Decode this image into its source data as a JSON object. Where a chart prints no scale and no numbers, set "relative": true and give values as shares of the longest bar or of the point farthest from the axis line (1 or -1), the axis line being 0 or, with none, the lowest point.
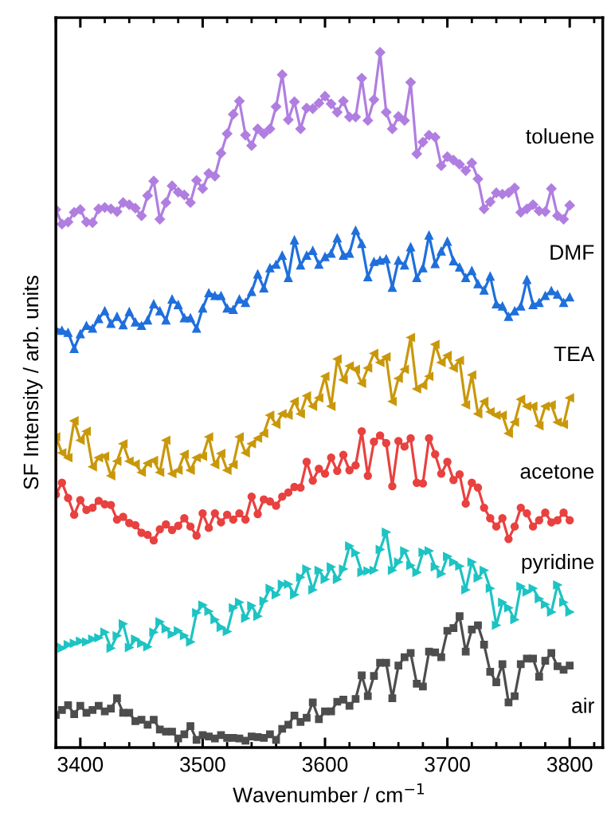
{
  "chart_data": {
    "type": "line",
    "relative": true,
    "xlabel": "Wavenumber / cm$^{−1}$",
    "ylabel": "SF Intensity / arb. units",
    "xlim": [
      3380,
      3827
    ],
    "xticks": [
      3400,
      3500,
      3600,
      3700,
      3800
    ],
    "grid": false,
    "legend": false,
    "line_style": "solid",
    "x": [
      3380,
      3385,
      3390,
      3395,
      3400,
      3405,
      3410,
      3415,
      3420,
      3425,
      3430,
      3435,
      3440,
      3445,
      3450,
      3455,
      3460,
      3465,
      3470,
      3475,
      3480,
      3485,
      3490,
      3495,
      3500,
      3505,
      3510,
      3515,
      3520,
      3525,
      3530,
      3535,
      3540,
      3545,
      3550,
      3555,
      3560,
      3565,
      3570,
      3575,
      3580,
      3585,
      3590,
      3595,
      3600,
      3605,
      3610,
      3615,
      3620,
      3625,
      3630,
      3635,
      3640,
      3645,
      3650,
      3655,
      3660,
      3665,
      3670,
      3675,
      3680,
      3685,
      3690,
      3695,
      3700,
      3705,
      3710,
      3715,
      3720,
      3725,
      3730,
      3735,
      3740,
      3745,
      3750,
      3755,
      3760,
      3765,
      3770,
      3775,
      3780,
      3785,
      3790,
      3795,
      3800
    ],
    "series": [
      {
        "name": "toluene",
        "color": "#b07ee0",
        "marker": "diamond",
        "values": [
          0.774,
          0.753,
          0.756,
          0.77,
          0.774,
          0.756,
          0.755,
          0.775,
          0.777,
          0.775,
          0.771,
          0.784,
          0.781,
          0.776,
          0.765,
          0.794,
          0.815,
          0.76,
          0.784,
          0.808,
          0.799,
          0.795,
          0.784,
          0.816,
          0.804,
          0.826,
          0.822,
          0.855,
          0.883,
          0.911,
          0.93,
          0.881,
          0.866,
          0.89,
          0.883,
          0.89,
          0.922,
          0.968,
          0.903,
          0.929,
          0.89,
          0.92,
          0.919,
          0.927,
          0.937,
          0.926,
          0.914,
          0.93,
          0.907,
          0.907,
          0.963,
          0.902,
          0.932,
          1.0,
          0.914,
          0.89,
          0.908,
          0.902,
          0.957,
          0.854,
          0.871,
          0.881,
          0.878,
          0.837,
          0.85,
          0.845,
          0.839,
          0.83,
          0.841,
          0.818,
          0.775,
          0.785,
          0.798,
          0.796,
          0.798,
          0.805,
          0.77,
          0.775,
          0.781,
          0.772,
          0.771,
          0.804,
          0.765,
          0.76,
          0.78
        ]
      },
      {
        "name": "DMF",
        "color": "#1f6fdc",
        "marker": "triangle",
        "values": [
          0.602,
          0.6,
          0.597,
          0.574,
          0.595,
          0.607,
          0.603,
          0.617,
          0.628,
          0.61,
          0.62,
          0.608,
          0.627,
          0.612,
          0.607,
          0.615,
          0.638,
          0.628,
          0.615,
          0.645,
          0.637,
          0.618,
          0.618,
          0.603,
          0.632,
          0.654,
          0.65,
          0.65,
          0.632,
          0.63,
          0.645,
          0.64,
          0.656,
          0.681,
          0.661,
          0.69,
          0.695,
          0.708,
          0.676,
          0.73,
          0.694,
          0.708,
          0.715,
          0.695,
          0.706,
          0.711,
          0.733,
          0.708,
          0.711,
          0.744,
          0.725,
          0.677,
          0.699,
          0.701,
          0.703,
          0.662,
          0.701,
          0.694,
          0.72,
          0.676,
          0.69,
          0.737,
          0.696,
          0.714,
          0.728,
          0.7,
          0.691,
          0.676,
          0.686,
          0.667,
          0.658,
          0.678,
          0.638,
          0.635,
          0.62,
          0.628,
          0.635,
          0.673,
          0.637,
          0.64,
          0.65,
          0.657,
          0.652,
          0.64,
          0.648
        ]
      },
      {
        "name": "TEA",
        "color": "#c9980a",
        "marker": "triangle_left",
        "values": [
          0.447,
          0.424,
          0.417,
          0.47,
          0.442,
          0.455,
          0.404,
          0.417,
          0.419,
          0.391,
          0.412,
          0.437,
          0.412,
          0.408,
          0.396,
          0.409,
          0.413,
          0.396,
          0.442,
          0.394,
          0.399,
          0.422,
          0.399,
          0.417,
          0.419,
          0.447,
          0.407,
          0.423,
          0.399,
          0.407,
          0.447,
          0.424,
          0.437,
          0.445,
          0.452,
          0.478,
          0.465,
          0.48,
          0.478,
          0.498,
          0.48,
          0.506,
          0.491,
          0.503,
          0.534,
          0.491,
          0.559,
          0.529,
          0.549,
          0.544,
          0.524,
          0.546,
          0.567,
          0.554,
          0.562,
          0.498,
          0.531,
          0.544,
          0.59,
          0.516,
          0.521,
          0.534,
          0.58,
          0.554,
          0.564,
          0.546,
          0.557,
          0.493,
          0.536,
          0.48,
          0.498,
          0.483,
          0.478,
          0.478,
          0.452,
          0.468,
          0.501,
          0.491,
          0.491,
          0.463,
          0.491,
          0.493,
          0.468,
          0.465,
          0.503
        ]
      },
      {
        "name": "acetone",
        "color": "#e8413f",
        "marker": "circle",
        "values": [
          0.364,
          0.381,
          0.359,
          0.335,
          0.356,
          0.342,
          0.345,
          0.355,
          0.35,
          0.349,
          0.328,
          0.332,
          0.323,
          0.32,
          0.309,
          0.306,
          0.298,
          0.314,
          0.321,
          0.313,
          0.319,
          0.33,
          0.318,
          0.305,
          0.337,
          0.316,
          0.337,
          0.324,
          0.335,
          0.328,
          0.337,
          0.328,
          0.361,
          0.336,
          0.357,
          0.354,
          0.348,
          0.361,
          0.367,
          0.375,
          0.374,
          0.411,
          0.384,
          0.401,
          0.394,
          0.417,
          0.398,
          0.421,
          0.399,
          0.406,
          0.455,
          0.391,
          0.44,
          0.449,
          0.438,
          0.376,
          0.441,
          0.433,
          0.445,
          0.381,
          0.38,
          0.445,
          0.422,
          0.394,
          0.411,
          0.385,
          0.393,
          0.351,
          0.381,
          0.374,
          0.345,
          0.33,
          0.318,
          0.33,
          0.3,
          0.318,
          0.345,
          0.337,
          0.318,
          0.327,
          0.338,
          0.324,
          0.327,
          0.338,
          0.327
        ]
      },
      {
        "name": "pyridine",
        "color": "#1ec3c3",
        "marker": "triangle_right",
        "values": [
          0.148,
          0.143,
          0.148,
          0.15,
          0.153,
          0.152,
          0.156,
          0.158,
          0.166,
          0.143,
          0.161,
          0.178,
          0.144,
          0.156,
          0.15,
          0.145,
          0.166,
          0.181,
          0.171,
          0.163,
          0.168,
          0.161,
          0.152,
          0.194,
          0.205,
          0.196,
          0.184,
          0.173,
          0.167,
          0.201,
          0.209,
          0.186,
          0.204,
          0.189,
          0.211,
          0.229,
          0.22,
          0.235,
          0.235,
          0.22,
          0.245,
          0.257,
          0.227,
          0.255,
          0.242,
          0.26,
          0.242,
          0.257,
          0.29,
          0.28,
          0.252,
          0.254,
          0.255,
          0.285,
          0.31,
          0.255,
          0.267,
          0.283,
          0.262,
          0.252,
          0.281,
          0.283,
          0.26,
          0.25,
          0.275,
          0.267,
          0.261,
          0.227,
          0.267,
          0.244,
          0.255,
          0.229,
          0.176,
          0.209,
          0.201,
          0.184,
          0.232,
          0.224,
          0.229,
          0.214,
          0.206,
          0.195,
          0.234,
          0.209,
          0.195
        ]
      },
      {
        "name": "air",
        "color": "#4d4d4d",
        "marker": "square",
        "values": [
          0.047,
          0.054,
          0.061,
          0.048,
          0.06,
          0.05,
          0.054,
          0.06,
          0.052,
          0.056,
          0.071,
          0.05,
          0.05,
          0.038,
          0.04,
          0.033,
          0.04,
          0.026,
          0.023,
          0.023,
          0.013,
          0.019,
          0.031,
          0.011,
          0.018,
          0.016,
          0.013,
          0.018,
          0.014,
          0.014,
          0.013,
          0.01,
          0.016,
          0.015,
          0.014,
          0.019,
          0.011,
          0.027,
          0.033,
          0.046,
          0.037,
          0.043,
          0.065,
          0.041,
          0.052,
          0.052,
          0.066,
          0.069,
          0.06,
          0.07,
          0.104,
          0.074,
          0.103,
          0.122,
          0.122,
          0.071,
          0.118,
          0.13,
          0.136,
          0.092,
          0.088,
          0.138,
          0.137,
          0.13,
          0.168,
          0.172,
          0.189,
          0.138,
          0.17,
          0.176,
          0.148,
          0.109,
          0.094,
          0.12,
          0.065,
          0.074,
          0.12,
          0.128,
          0.128,
          0.102,
          0.125,
          0.136,
          0.117,
          0.112,
          0.118
        ]
      }
    ]
  }
}
